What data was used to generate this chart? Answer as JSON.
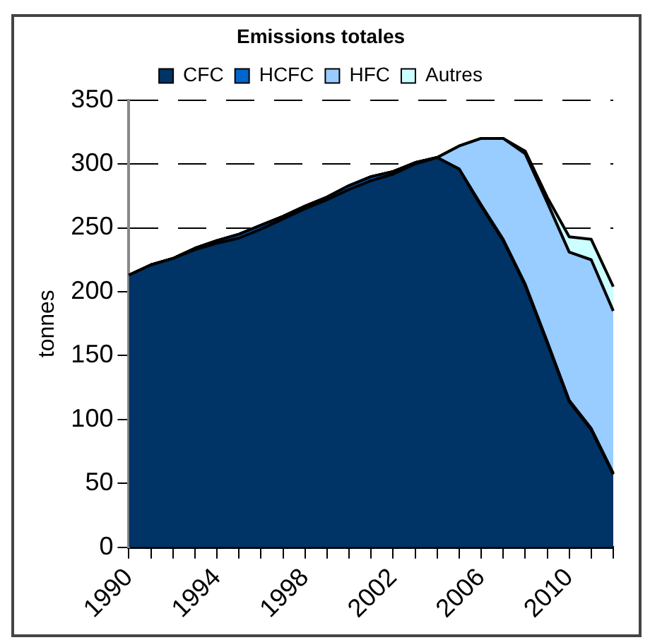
{
  "chart_data": {
    "type": "area",
    "title": "Emissions totales",
    "ylabel": "tonnes",
    "stacked": true,
    "categories": [
      "1990",
      null,
      null,
      null,
      "1994",
      null,
      null,
      null,
      "1998",
      null,
      null,
      null,
      "2002",
      null,
      null,
      null,
      "2006",
      null,
      null,
      null,
      "2010",
      null,
      null
    ],
    "series": [
      {
        "name": "CFC",
        "color": "#003366",
        "values": [
          213,
          221,
          226,
          233,
          238,
          242,
          249,
          257,
          265,
          272,
          280,
          287,
          292,
          300,
          305,
          296,
          267,
          240,
          205,
          160,
          114,
          92,
          57
        ]
      },
      {
        "name": "HCFC",
        "color": "#0066cc",
        "values": [
          0,
          0,
          0,
          1,
          2,
          3,
          3,
          2,
          2,
          2,
          3,
          3,
          2,
          1,
          0,
          0,
          1,
          1,
          1,
          1,
          1,
          1,
          1
        ]
      },
      {
        "name": "HFC",
        "color": "#99ccff",
        "values": [
          0,
          0,
          0,
          0,
          0,
          0,
          0,
          0,
          0,
          0,
          0,
          0,
          0,
          0,
          0,
          18,
          52,
          79,
          102,
          109,
          116,
          132,
          127
        ]
      },
      {
        "name": "Autres",
        "color": "#ccffff",
        "values": [
          0,
          0,
          0,
          0,
          0,
          0,
          0,
          0,
          0,
          0,
          0,
          0,
          0,
          0,
          0,
          0,
          0,
          0,
          2,
          4,
          12,
          16,
          19
        ]
      }
    ],
    "ylim": [
      0,
      350
    ],
    "yticks": [
      0,
      50,
      100,
      150,
      200,
      250,
      300,
      350
    ],
    "grid": "y",
    "legend": "top",
    "line_style": "solid",
    "marker": "none"
  }
}
